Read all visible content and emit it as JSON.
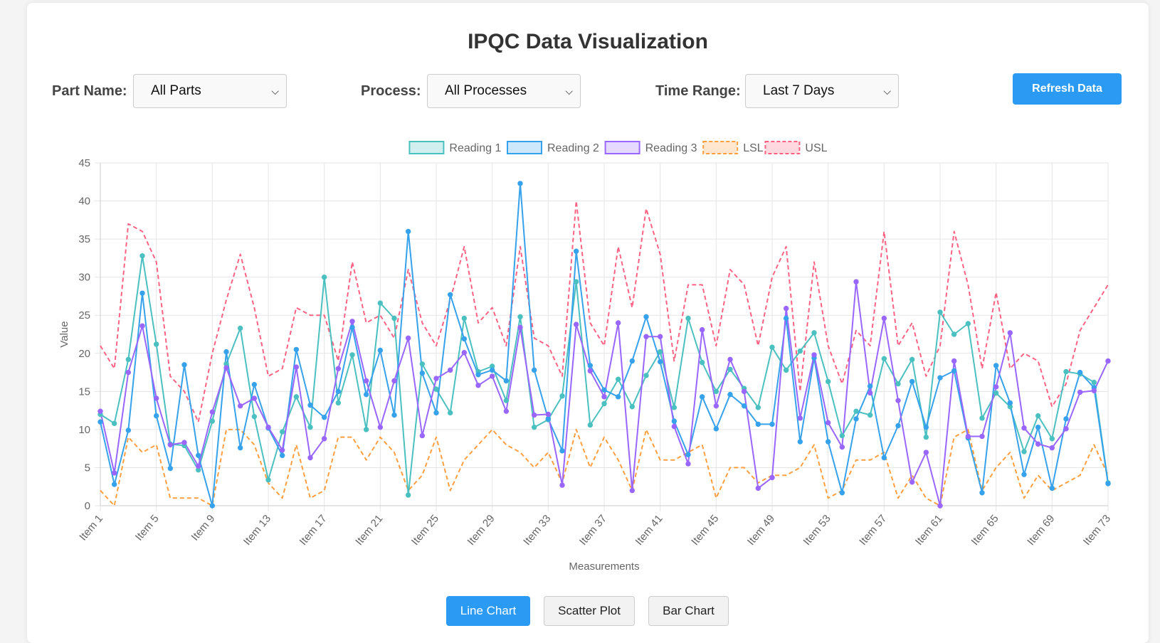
{
  "page": {
    "title": "IPQC Data Visualization"
  },
  "controls": {
    "part_label": "Part Name:",
    "part_value": "All Parts",
    "process_label": "Process:",
    "process_value": "All Processes",
    "time_label": "Time Range:",
    "time_value": "Last 7 Days",
    "refresh_label": "Refresh Data"
  },
  "chart_buttons": {
    "line": "Line Chart",
    "scatter": "Scatter Plot",
    "bar": "Bar Chart",
    "active": "line"
  },
  "colors": {
    "accent": "#2b9af3",
    "reading1": "#4bc0c0",
    "reading2": "#36a2eb",
    "reading3": "#9966ff",
    "lsl": "#ff9f40",
    "usl": "#ff6384"
  },
  "chart_data": {
    "type": "line",
    "xlabel": "Measurements",
    "ylabel": "Value",
    "ylim": [
      0,
      45
    ],
    "yticks": [
      0,
      5,
      10,
      15,
      20,
      25,
      30,
      35,
      40,
      45
    ],
    "grid": true,
    "legend_position": "top",
    "categories": [
      "Item 1",
      "Item 2",
      "Item 3",
      "Item 4",
      "Item 5",
      "Item 6",
      "Item 7",
      "Item 8",
      "Item 9",
      "Item 10",
      "Item 11",
      "Item 12",
      "Item 13",
      "Item 14",
      "Item 15",
      "Item 16",
      "Item 17",
      "Item 18",
      "Item 19",
      "Item 20",
      "Item 21",
      "Item 22",
      "Item 23",
      "Item 24",
      "Item 25",
      "Item 26",
      "Item 27",
      "Item 28",
      "Item 29",
      "Item 30",
      "Item 31",
      "Item 32",
      "Item 33",
      "Item 34",
      "Item 35",
      "Item 36",
      "Item 37",
      "Item 38",
      "Item 39",
      "Item 40",
      "Item 41",
      "Item 42",
      "Item 43",
      "Item 44",
      "Item 45",
      "Item 46",
      "Item 47",
      "Item 48",
      "Item 49",
      "Item 50",
      "Item 51",
      "Item 52",
      "Item 53",
      "Item 54",
      "Item 55",
      "Item 56",
      "Item 57",
      "Item 58",
      "Item 59",
      "Item 60",
      "Item 61",
      "Item 62",
      "Item 63",
      "Item 64",
      "Item 65",
      "Item 66",
      "Item 67",
      "Item 68",
      "Item 69",
      "Item 70",
      "Item 71",
      "Item 72",
      "Item 73"
    ],
    "tick_labels_shown": [
      "Item 1",
      "Item 5",
      "Item 9",
      "Item 13",
      "Item 17",
      "Item 21",
      "Item 25",
      "Item 29",
      "Item 33",
      "Item 37",
      "Item 41",
      "Item 45",
      "Item 49",
      "Item 53",
      "Item 57",
      "Item 61",
      "Item 65",
      "Item 69",
      "Item 73"
    ],
    "series": [
      {
        "name": "Reading 1",
        "key": "reading1",
        "dashed": false,
        "markers": true,
        "values": [
          12,
          10.8,
          19.2,
          32.8,
          21.2,
          8.1,
          7.9,
          4.7,
          11.1,
          18.6,
          23.3,
          11.7,
          3.4,
          9.7,
          14.3,
          10.3,
          30,
          13.5,
          19.8,
          10,
          26.6,
          24.6,
          1.4,
          18.6,
          15.3,
          12.2,
          24.6,
          17.6,
          18.3,
          13.8,
          24.8,
          10.3,
          11.3,
          14.4,
          29.4,
          10.6,
          13.4,
          16.6,
          13,
          17.1,
          20.2,
          12.9,
          24.6,
          18.8,
          15,
          17.9,
          15.4,
          12.9,
          20.8,
          17.8,
          20.3,
          22.7,
          16.3,
          9.2,
          12.4,
          11.9,
          19.3,
          16,
          19.2,
          9,
          25.4,
          22.5,
          23.9,
          11.5,
          14.8,
          13,
          7.1,
          11.8,
          8.8,
          17.6,
          17.3,
          16.2,
          3
        ]
      },
      {
        "name": "Reading 2",
        "key": "reading2",
        "dashed": false,
        "markers": true,
        "values": [
          11,
          2.8,
          9.9,
          27.9,
          11.8,
          4.9,
          18.5,
          6.6,
          0,
          20.2,
          7.6,
          15.9,
          10.2,
          6.6,
          20.5,
          13.2,
          11.6,
          15,
          23.4,
          14.6,
          20.4,
          11.9,
          36,
          17.4,
          12.2,
          27.7,
          21.9,
          17.2,
          17.8,
          16.4,
          42.3,
          17.8,
          11.4,
          7.2,
          33.4,
          18.4,
          15.2,
          14.3,
          19,
          24.8,
          18.9,
          11.1,
          6.7,
          14.3,
          10.1,
          14.6,
          13.1,
          10.7,
          10.7,
          24.6,
          8.4,
          19.4,
          8.4,
          1.7,
          11.4,
          15.7,
          6.3,
          10.5,
          16.3,
          10.3,
          16.8,
          17.7,
          8.9,
          1.7,
          18.4,
          13.5,
          4.1,
          10.3,
          2.3,
          11.4,
          17.5,
          15.5,
          2.9
        ]
      },
      {
        "name": "Reading 3",
        "key": "reading3",
        "dashed": false,
        "markers": true,
        "values": [
          12.4,
          4.3,
          17.5,
          23.6,
          14.1,
          8,
          8.3,
          5.2,
          12.3,
          18.1,
          13.1,
          14.1,
          10.3,
          7.3,
          18.2,
          6.3,
          8.8,
          18,
          24.2,
          16.4,
          10.3,
          16.4,
          22,
          9.2,
          16.7,
          17.8,
          20.1,
          15.8,
          17,
          12.4,
          23.4,
          11.9,
          12,
          2.7,
          23.8,
          17.7,
          14.3,
          24,
          2,
          22.2,
          22.2,
          10.4,
          5.5,
          23.1,
          13.1,
          19.2,
          15,
          2.3,
          3.7,
          25.9,
          11.5,
          19.8,
          10.9,
          7.7,
          29.4,
          14.8,
          24.6,
          13.8,
          3.1,
          7,
          0,
          19,
          9.1,
          9.1,
          15.6,
          22.7,
          10.2,
          8.1,
          7.6,
          10.1,
          14.9,
          15.1,
          19
        ]
      },
      {
        "name": "LSL",
        "key": "lsl",
        "dashed": true,
        "markers": false,
        "values": [
          2,
          0,
          9,
          7,
          8,
          1,
          1,
          1,
          0,
          10,
          10,
          8,
          3,
          1,
          8,
          1,
          2,
          9,
          9,
          6,
          9,
          7,
          2,
          4,
          9,
          2,
          6,
          8,
          10,
          8,
          7,
          5,
          7,
          3,
          10,
          5,
          9,
          6,
          2,
          10,
          6,
          6,
          7,
          8,
          1,
          5,
          5,
          3,
          4,
          4,
          5,
          8,
          1,
          2,
          6,
          6,
          7,
          1,
          4,
          1,
          0,
          9,
          10,
          2,
          5,
          7,
          1,
          4,
          2,
          3,
          4,
          8,
          4
        ]
      },
      {
        "name": "USL",
        "key": "usl",
        "dashed": true,
        "markers": false,
        "values": [
          21,
          18,
          37,
          36,
          32,
          17,
          15,
          11,
          20,
          27,
          33,
          26,
          17,
          18,
          26,
          25,
          25,
          19,
          32,
          24,
          25,
          22,
          31,
          24,
          21,
          27,
          34,
          24,
          26,
          21,
          34,
          22,
          21,
          17,
          40,
          24,
          21,
          34,
          26,
          39,
          33,
          19,
          29,
          29,
          21,
          31,
          29,
          21,
          30,
          34,
          15,
          32,
          21,
          16,
          23,
          21,
          36,
          21,
          24,
          17,
          21,
          36,
          29,
          18,
          28,
          18,
          20,
          19,
          13,
          16,
          23,
          26,
          29
        ]
      }
    ]
  }
}
